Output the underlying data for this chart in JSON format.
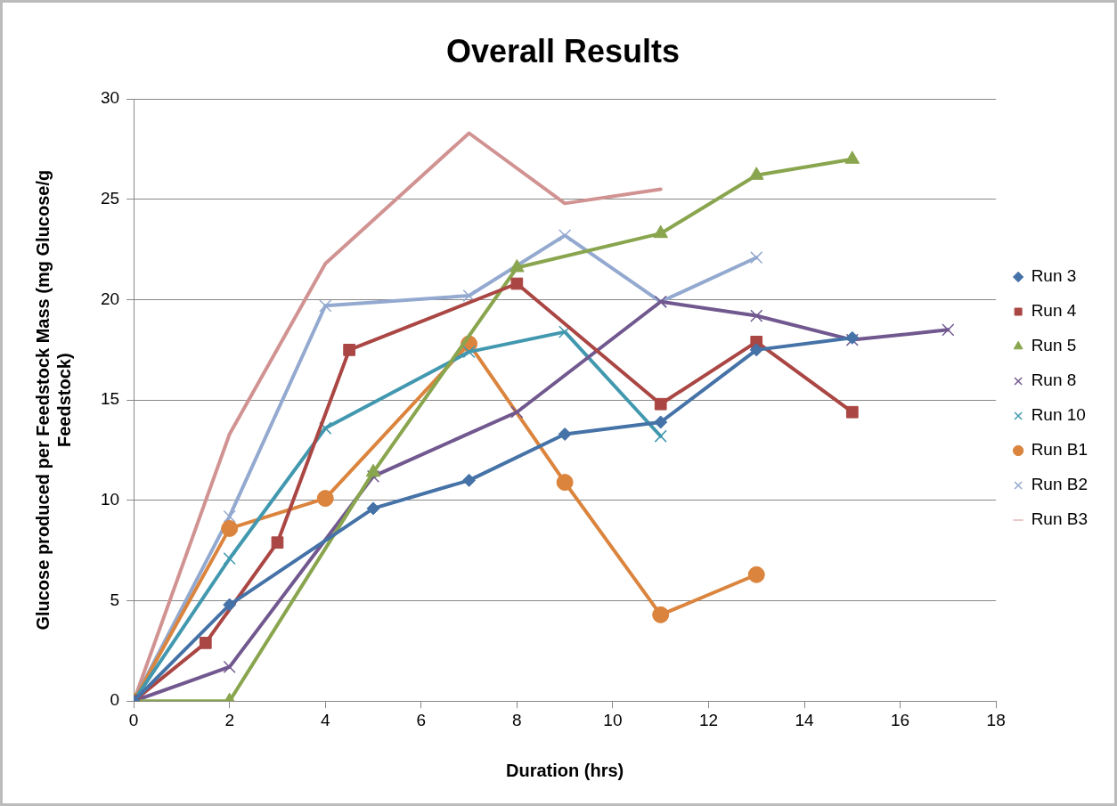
{
  "chart_data": {
    "type": "line",
    "title": "Overall Results",
    "xlabel": "Duration (hrs)",
    "ylabel": "Glucose produced per Feedstock Mass (mg Glucose/g Feedstock)",
    "xlim": [
      0,
      18
    ],
    "xticks": [
      0,
      2,
      4,
      6,
      8,
      10,
      12,
      14,
      16,
      18
    ],
    "ylim": [
      0,
      30
    ],
    "yticks": [
      0,
      5,
      10,
      15,
      20,
      25,
      30
    ],
    "grid": "y",
    "legend": "right",
    "series": [
      {
        "name": "Run 3",
        "color": "#4572a7",
        "marker": "diamond",
        "x": [
          0,
          2,
          5,
          7,
          9,
          11,
          13,
          15
        ],
        "values": [
          0,
          4.8,
          9.6,
          11.0,
          13.3,
          13.9,
          17.5,
          18.1
        ]
      },
      {
        "name": "Run 4",
        "color": "#aa4643",
        "marker": "square",
        "x": [
          0,
          1.5,
          3,
          4.5,
          8,
          11,
          13,
          15
        ],
        "values": [
          0,
          2.9,
          7.9,
          17.5,
          20.8,
          14.8,
          17.9,
          14.4
        ]
      },
      {
        "name": "Run 5",
        "color": "#89a54e",
        "marker": "triangle",
        "x": [
          0,
          2,
          5,
          8,
          11,
          13,
          15
        ],
        "values": [
          0,
          0,
          11.4,
          21.6,
          23.3,
          26.2,
          27.0
        ]
      },
      {
        "name": "Run 8",
        "color": "#71588f",
        "marker": "cross",
        "x": [
          0,
          2,
          5,
          8,
          11,
          13,
          15,
          17
        ],
        "values": [
          0,
          1.7,
          11.2,
          14.4,
          19.9,
          19.2,
          18.0,
          18.5
        ]
      },
      {
        "name": "Run 10",
        "color": "#4198af",
        "marker": "cross",
        "x": [
          0,
          2,
          4,
          7,
          9,
          11
        ],
        "values": [
          0,
          7.1,
          13.6,
          17.4,
          18.4,
          13.2
        ]
      },
      {
        "name": "Run B1",
        "color": "#db843d",
        "marker": "circle",
        "x": [
          0,
          2,
          4,
          7,
          9,
          11,
          13
        ],
        "values": [
          0,
          8.6,
          10.1,
          17.8,
          10.9,
          4.3,
          6.3
        ]
      },
      {
        "name": "Run B2",
        "color": "#93a9cf",
        "marker": "cross",
        "x": [
          0,
          2,
          4,
          7,
          9,
          11,
          13
        ],
        "values": [
          0,
          9.2,
          19.7,
          20.2,
          23.2,
          19.9,
          22.1
        ]
      },
      {
        "name": "Run B3",
        "color": "#d19392",
        "marker": "none",
        "x": [
          0,
          2,
          4,
          7,
          9,
          11
        ],
        "values": [
          0,
          13.3,
          21.8,
          28.3,
          24.8,
          25.5
        ]
      }
    ]
  }
}
